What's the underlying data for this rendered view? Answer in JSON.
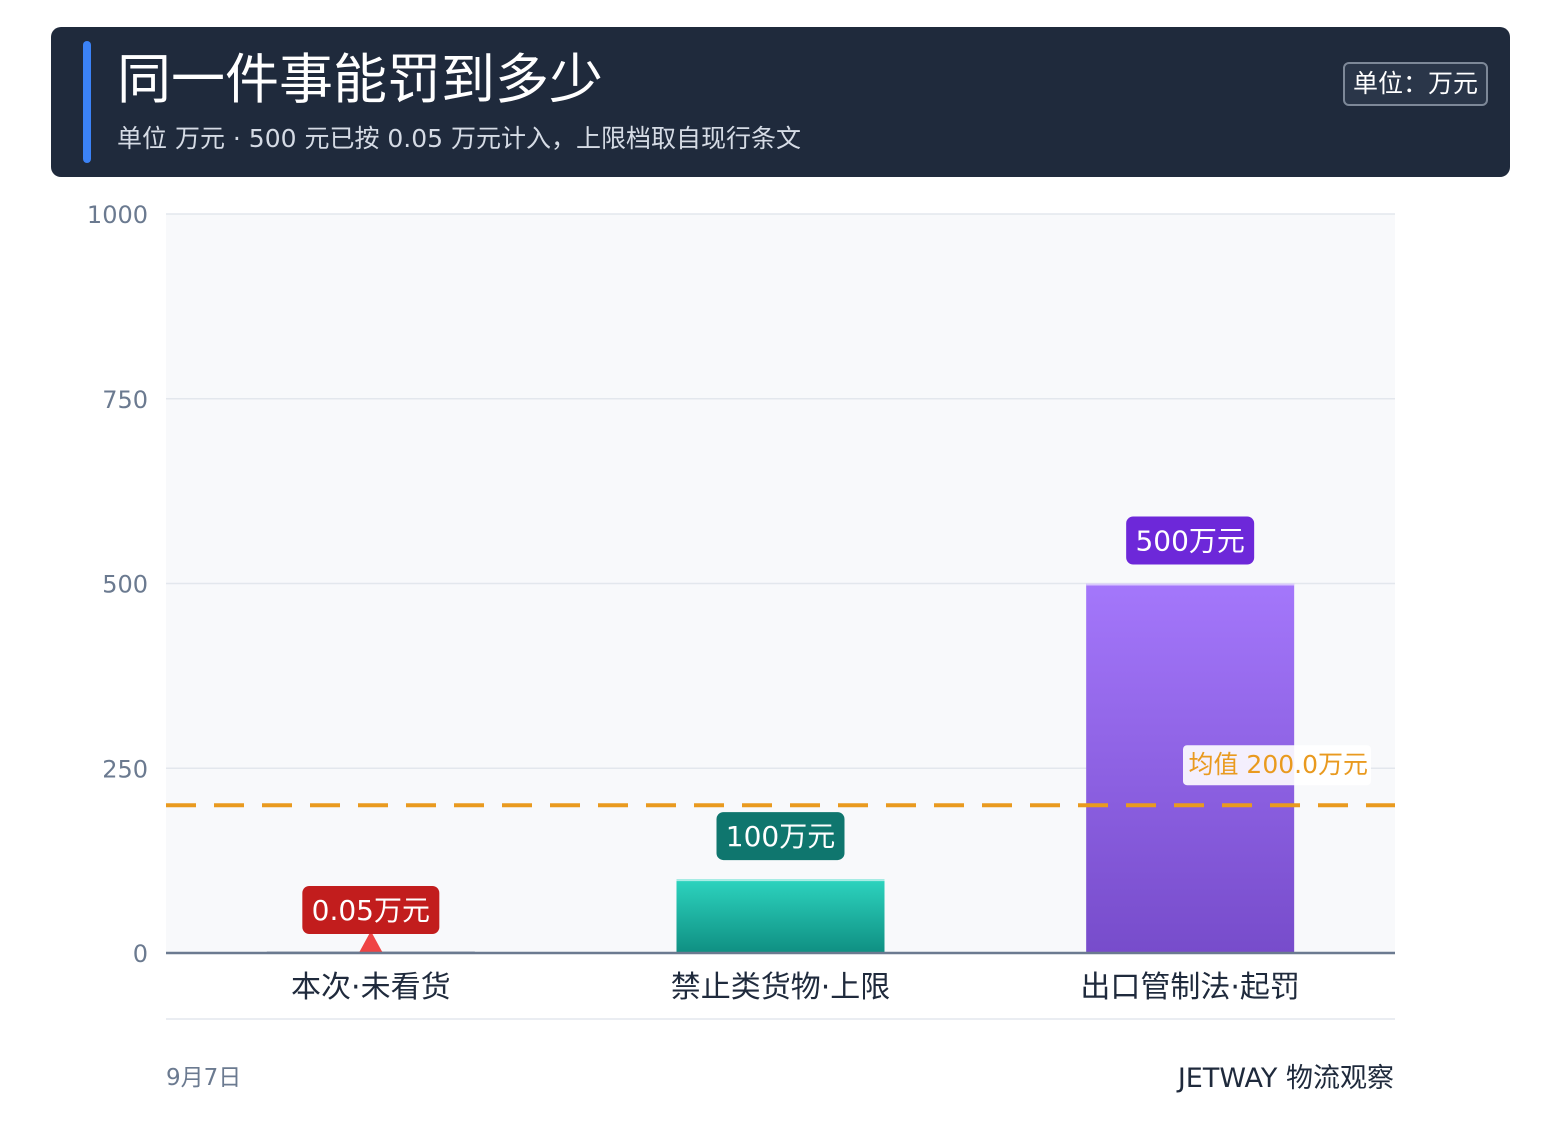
{
  "header": {
    "title": "同一件事能罚到多少",
    "subtitle": "单位 万元 · 500 元已按 0.05 万元计入，上限档取自现行条文",
    "unit_badge": "单位：万元"
  },
  "chart_data": {
    "type": "bar",
    "categories": [
      "本次·未看货",
      "禁止类货物·上限",
      "出口管制法·起罚"
    ],
    "values": [
      0.05,
      100,
      500
    ],
    "value_labels": [
      "0.05万元",
      "100万元",
      "500万元"
    ],
    "colors": [
      "#c81e1e",
      "#14b8a6",
      "#8b5cf6"
    ],
    "label_colors": [
      "#c21d1d",
      "#0f766e",
      "#6d28d9"
    ],
    "ylim": [
      0,
      1000
    ],
    "yticks": [
      0,
      250,
      500,
      750,
      1000
    ],
    "grid": true,
    "mean": {
      "value": 200,
      "label": "均值 200.0万元",
      "color": "#e99a1f"
    },
    "marker_color": "#ef4444"
  },
  "footer": {
    "date": "9月7日",
    "brand": "JETWAY 物流观察"
  }
}
